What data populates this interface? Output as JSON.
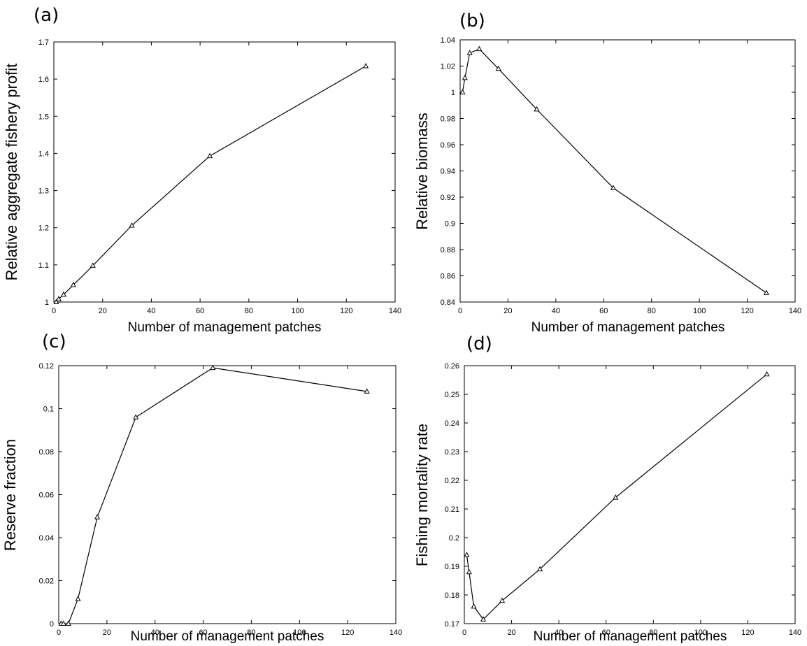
{
  "chart_data": [
    {
      "panel": "(a)",
      "type": "line",
      "xlabel": "Number of management patches",
      "ylabel": "Relative  aggregate fishery profit",
      "xlim": [
        0,
        140
      ],
      "ylim": [
        1,
        1.7
      ],
      "xticks": [
        0,
        20,
        40,
        60,
        80,
        100,
        120,
        140
      ],
      "xtick_labels": [
        "0",
        "20",
        "40",
        "60",
        "80",
        "100",
        "120",
        "140"
      ],
      "yticks": [
        1,
        1.1,
        1.2,
        1.3,
        1.4,
        1.5,
        1.6,
        1.7
      ],
      "ytick_labels": [
        "1",
        "1.1",
        "1.2",
        "1.3",
        "1.4",
        "1.5",
        "1.6",
        "1.7"
      ],
      "marker": "triangle",
      "series": [
        {
          "x": [
            1,
            2,
            4,
            8,
            16,
            32,
            64,
            128
          ],
          "y": [
            1.0,
            1.008,
            1.02,
            1.046,
            1.098,
            1.206,
            1.393,
            1.635
          ]
        }
      ]
    },
    {
      "panel": "(b)",
      "type": "line",
      "xlabel": "Number of management patches",
      "ylabel": "Relative biomass",
      "xlim": [
        0,
        140
      ],
      "ylim": [
        0.84,
        1.04
      ],
      "xticks": [
        0,
        20,
        40,
        60,
        80,
        100,
        120,
        140
      ],
      "xtick_labels": [
        "0",
        "20",
        "40",
        "60",
        "80",
        "100",
        "120",
        "140"
      ],
      "yticks": [
        0.84,
        0.86,
        0.88,
        0.9,
        0.92,
        0.94,
        0.96,
        0.98,
        1.0,
        1.02,
        1.04
      ],
      "ytick_labels": [
        "0.84",
        "0.86",
        "0.88",
        "0.9",
        "0.92",
        "0.94",
        "0.96",
        "0.98",
        "1",
        "1.02",
        "1.04"
      ],
      "marker": "triangle",
      "series": [
        {
          "x": [
            1,
            2,
            4,
            8,
            16,
            32,
            64,
            128
          ],
          "y": [
            1.0,
            1.011,
            1.03,
            1.033,
            1.018,
            0.987,
            0.927,
            0.847
          ]
        }
      ]
    },
    {
      "panel": "(c)",
      "type": "line",
      "xlabel": "Number of management patches",
      "ylabel": "Reserve fraction",
      "xlim": [
        0,
        140
      ],
      "ylim": [
        0,
        0.12
      ],
      "xticks": [
        0,
        20,
        40,
        60,
        80,
        100,
        120,
        140
      ],
      "xtick_labels": [
        "0",
        "20",
        "40",
        "60",
        "80",
        "100",
        "120",
        "140"
      ],
      "yticks": [
        0,
        0.02,
        0.04,
        0.06,
        0.08,
        0.1,
        0.12
      ],
      "ytick_labels": [
        "0",
        "0.02",
        "0.04",
        "0.06",
        "0.08",
        "0.1",
        "0.12"
      ],
      "marker": "triangle",
      "series": [
        {
          "x": [
            1,
            2,
            4,
            8,
            16,
            32,
            64,
            128
          ],
          "y": [
            0.0,
            0.0,
            0.0,
            0.0115,
            0.0495,
            0.096,
            0.119,
            0.108
          ]
        }
      ]
    },
    {
      "panel": "(d)",
      "type": "line",
      "xlabel": "Number of management patches",
      "ylabel": "Fishing mortality rate",
      "xlim": [
        0,
        140
      ],
      "ylim": [
        0.17,
        0.26
      ],
      "xticks": [
        0,
        20,
        40,
        60,
        80,
        100,
        120,
        140
      ],
      "xtick_labels": [
        "0",
        "20",
        "40",
        "60",
        "80",
        "100",
        "120",
        "140"
      ],
      "yticks": [
        0.17,
        0.18,
        0.19,
        0.2,
        0.21,
        0.22,
        0.23,
        0.24,
        0.25,
        0.26
      ],
      "ytick_labels": [
        "0.17",
        "0.18",
        "0.19",
        "0.2",
        "0.21",
        "0.22",
        "0.23",
        "0.24",
        "0.25",
        "0.26"
      ],
      "marker": "triangle",
      "series": [
        {
          "x": [
            1,
            2,
            4,
            8,
            16,
            32,
            64,
            128
          ],
          "y": [
            0.194,
            0.188,
            0.176,
            0.1715,
            0.178,
            0.189,
            0.214,
            0.257
          ]
        }
      ]
    }
  ]
}
